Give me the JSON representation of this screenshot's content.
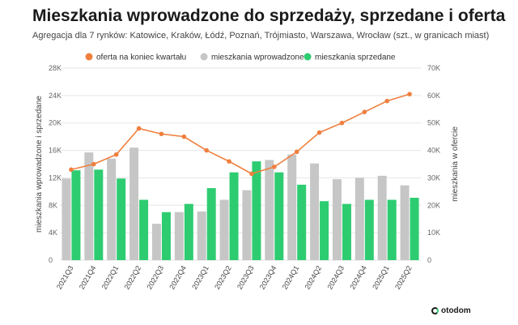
{
  "title": "Mieszkania wprowadzone do sprzedaży, sprzedane i oferta",
  "subtitle": "Agregacja dla 7 rynków: Katowice, Kraków, Łódź, Poznań, Trójmiasto, Warszawa, Wrocław (szt., w granicach miast)",
  "logo": "otodom",
  "colors": {
    "line": "#ef7f3e",
    "introduced": "#c6c6c6",
    "sold": "#2ecc71"
  },
  "chart_data": {
    "type": "bar",
    "categories": [
      "2021Q3",
      "2021Q4",
      "2022Q1",
      "2022Q2",
      "2022Q3",
      "2022Q4",
      "2023Q1",
      "2023Q2",
      "2023Q3",
      "2023Q4",
      "2024Q1",
      "2024Q2",
      "2024Q3",
      "2024Q4",
      "2025Q1",
      "2025Q2"
    ],
    "series": [
      {
        "name": "oferta na koniec kwartału",
        "kind": "line",
        "axis": "right",
        "values": [
          33000,
          35000,
          38500,
          48000,
          46000,
          45000,
          40000,
          36000,
          31500,
          34000,
          39500,
          46500,
          50000,
          54000,
          58000,
          60500
        ]
      },
      {
        "name": "mieszkania wprowadzone",
        "kind": "bar",
        "axis": "left",
        "values": [
          11900,
          15700,
          14800,
          16400,
          5300,
          7000,
          7100,
          8800,
          10200,
          14600,
          15400,
          14100,
          11800,
          12000,
          12300,
          10900
        ]
      },
      {
        "name": "mieszkania sprzedane",
        "kind": "bar",
        "axis": "left",
        "values": [
          13100,
          13200,
          11900,
          8800,
          7000,
          8200,
          10500,
          12800,
          14400,
          12800,
          11000,
          8600,
          8200,
          8800,
          8800,
          9100
        ]
      }
    ],
    "y_left": {
      "label": "mieszkania wprowadzone i sprzedane",
      "range": [
        0,
        28000
      ],
      "ticks": [
        0,
        4000,
        8000,
        12000,
        16000,
        20000,
        24000,
        28000
      ],
      "tick_labels": [
        "0",
        "4K",
        "8K",
        "12K",
        "16K",
        "20K",
        "24K",
        "28K"
      ]
    },
    "y_right": {
      "label": "mieszkania w ofercie",
      "range": [
        0,
        70000
      ],
      "ticks": [
        0,
        10000,
        20000,
        30000,
        40000,
        50000,
        60000,
        70000
      ],
      "tick_labels": [
        "0",
        "10K",
        "20K",
        "30K",
        "40K",
        "50K",
        "60K",
        "70K"
      ]
    },
    "grid": true,
    "legend_position": "top"
  }
}
